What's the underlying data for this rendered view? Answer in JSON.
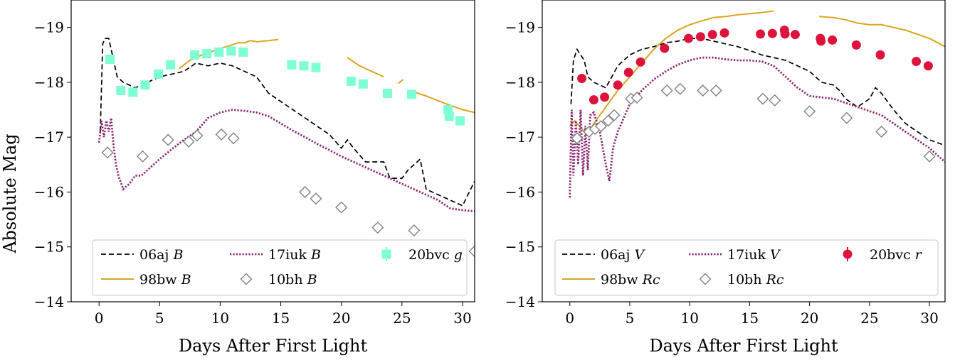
{
  "chart_data": [
    {
      "type": "line",
      "ylabel": "Absolute Mag",
      "xlabel": "Days After First Light",
      "xlim": [
        -2.3,
        31
      ],
      "ylim": [
        -14,
        -19.5
      ],
      "y_inverted": true,
      "xticks": [
        0,
        5,
        10,
        15,
        20,
        25,
        30
      ],
      "yticks": [
        -19,
        -18,
        -17,
        -16,
        -15,
        -14
      ],
      "x_tick_labels": [
        "0",
        "5",
        "10",
        "15",
        "20",
        "25",
        "30"
      ],
      "y_tick_labels": [
        "−19",
        "−18",
        "−17",
        "−16",
        "−15",
        "−14"
      ],
      "legend_position": "lower center",
      "series": [
        {
          "name": "06aj",
          "band": "B",
          "style": "dashed",
          "color": "#000000",
          "x": [
            0.1,
            0.3,
            0.5,
            0.8,
            1.0,
            1.2,
            1.5,
            2.0,
            3.0,
            4.0,
            5.0,
            7.0,
            8.0,
            9.0,
            10.0,
            11.0,
            12.0,
            13.0,
            14.0,
            15.0,
            16.0,
            17.0,
            18.0,
            19.0,
            20.0,
            20.5,
            21.0,
            22.0,
            23.0,
            23.5,
            24.0,
            25.0,
            25.5,
            26.5,
            27.0,
            28.0,
            29.0,
            30.0,
            31.0
          ],
          "y": [
            -17.1,
            -18.7,
            -18.8,
            -18.8,
            -18.6,
            -18.4,
            -18.1,
            -18.0,
            -17.9,
            -18.0,
            -18.1,
            -18.2,
            -18.35,
            -18.3,
            -18.35,
            -18.3,
            -18.2,
            -18.1,
            -17.8,
            -17.65,
            -17.5,
            -17.35,
            -17.2,
            -17.05,
            -16.8,
            -16.95,
            -16.8,
            -16.55,
            -16.55,
            -16.55,
            -16.25,
            -16.25,
            -16.4,
            -16.6,
            -16.05,
            -15.95,
            -15.85,
            -15.75,
            -16.2
          ]
        },
        {
          "name": "98bw",
          "band": "B",
          "style": "solid",
          "color": "#DAA520",
          "segments": [
            {
              "x": [
                6.6,
                7.5,
                8.5,
                9.5,
                10.5,
                11.5,
                12.0,
                12.5,
                13.0,
                14.0,
                14.8
              ],
              "y": [
                -18.25,
                -18.4,
                -18.5,
                -18.58,
                -18.65,
                -18.72,
                -18.72,
                -18.76,
                -18.74,
                -18.76,
                -18.78
              ]
            },
            {
              "x": [
                20.5,
                21.5,
                22.5,
                23.5
              ],
              "y": [
                -18.45,
                -18.3,
                -18.2,
                -18.1
              ]
            },
            {
              "x": [
                24.7,
                25.1
              ],
              "y": [
                -17.98,
                -18.05
              ]
            },
            {
              "x": [
                25.6,
                27.0,
                28.5,
                30.0,
                31.0
              ],
              "y": [
                -17.85,
                -17.75,
                -17.62,
                -17.5,
                -17.45
              ]
            }
          ]
        },
        {
          "name": "17iuk",
          "band": "B",
          "style": "dotted",
          "color": "#8B2872",
          "x": [
            0.0,
            0.2,
            0.4,
            0.6,
            0.8,
            1.0,
            1.2,
            1.4,
            1.6,
            2.0,
            2.5,
            3.0,
            3.5,
            4.0,
            5.0,
            6.0,
            7.0,
            8.0,
            9.0,
            10.0,
            11.0,
            12.0,
            13.0,
            14.0,
            15.0,
            16.0,
            17.0,
            18.0,
            20.0,
            22.0,
            24.0,
            26.0,
            28.0,
            29.0,
            30.0,
            31.0
          ],
          "y": [
            -16.9,
            -17.3,
            -17.0,
            -17.3,
            -17.1,
            -17.35,
            -16.85,
            -16.5,
            -16.3,
            -16.05,
            -16.15,
            -16.3,
            -16.3,
            -16.4,
            -16.6,
            -16.78,
            -16.95,
            -17.1,
            -17.35,
            -17.45,
            -17.5,
            -17.48,
            -17.45,
            -17.38,
            -17.25,
            -17.12,
            -17.0,
            -16.88,
            -16.65,
            -16.45,
            -16.25,
            -16.05,
            -15.85,
            -15.7,
            -15.67,
            -15.65
          ]
        },
        {
          "name": "10bh",
          "band": "B",
          "style": "marker-diamond-open",
          "color": "#808080",
          "x": [
            0.7,
            3.6,
            5.7,
            7.4,
            8.1,
            10.1,
            11.1,
            17.0,
            17.9,
            20.0,
            23.0,
            26.0,
            31.0
          ],
          "y": [
            -16.72,
            -16.65,
            -16.95,
            -16.92,
            -17.03,
            -17.05,
            -16.98,
            -16.0,
            -15.88,
            -15.72,
            -15.35,
            -15.3,
            -14.92
          ]
        },
        {
          "name": "20bvc",
          "band": "g",
          "style": "marker-square",
          "color": "#7FFFD4",
          "x": [
            0.9,
            1.8,
            2.8,
            3.8,
            4.9,
            5.9,
            7.9,
            8.9,
            9.9,
            10.9,
            11.9,
            15.9,
            16.9,
            17.9,
            20.8,
            21.8,
            23.8,
            25.8,
            28.8,
            28.9,
            29.8
          ],
          "y": [
            -18.42,
            -17.85,
            -17.82,
            -17.95,
            -18.15,
            -18.32,
            -18.5,
            -18.52,
            -18.55,
            -18.57,
            -18.55,
            -18.32,
            -18.3,
            -18.27,
            -18.02,
            -17.97,
            -17.8,
            -17.78,
            -17.5,
            -17.38,
            -17.3
          ]
        }
      ],
      "legend_entries": [
        {
          "name": "06aj",
          "band": "B"
        },
        {
          "name": "98bw",
          "band": "B"
        },
        {
          "name": "17iuk",
          "band": "B"
        },
        {
          "name": "10bh",
          "band": "B"
        },
        {
          "name": "20bvc",
          "band": "g"
        }
      ]
    },
    {
      "type": "line",
      "ylabel": "",
      "xlabel": "Days After First Light",
      "xlim": [
        -2.3,
        31.3
      ],
      "ylim": [
        -14,
        -19.5
      ],
      "y_inverted": true,
      "xticks": [
        0,
        5,
        10,
        15,
        20,
        25,
        30
      ],
      "yticks": [
        -19,
        -18,
        -17,
        -16,
        -15,
        -14
      ],
      "x_tick_labels": [
        "0",
        "5",
        "10",
        "15",
        "20",
        "25",
        "30"
      ],
      "y_tick_labels": [
        "−19",
        "−18",
        "−17",
        "−16",
        "−15",
        "−14"
      ],
      "legend_position": "lower center",
      "series": [
        {
          "name": "06aj",
          "band": "V",
          "style": "dashed",
          "color": "#000000",
          "x": [
            0.1,
            0.3,
            0.6,
            0.9,
            1.2,
            1.5,
            2.0,
            3.0,
            3.5,
            4.0,
            4.5,
            5.0,
            6.0,
            7.0,
            8.0,
            9.0,
            10.0,
            11.0,
            12.0,
            13.0,
            14.0,
            15.0,
            16.0,
            17.0,
            18.0,
            19.0,
            20.0,
            21.0,
            22.0,
            22.5,
            23.0,
            24.0,
            25.0,
            25.5,
            26.0,
            27.0,
            28.0,
            29.0,
            30.0,
            31.3
          ],
          "y": [
            -17.6,
            -18.4,
            -18.6,
            -18.5,
            -18.4,
            -18.1,
            -18.0,
            -17.9,
            -18.1,
            -18.3,
            -18.4,
            -18.5,
            -18.6,
            -18.65,
            -18.72,
            -18.75,
            -18.8,
            -18.8,
            -18.75,
            -18.7,
            -18.65,
            -18.58,
            -18.5,
            -18.45,
            -18.4,
            -18.3,
            -18.2,
            -18.0,
            -17.95,
            -17.85,
            -17.7,
            -17.55,
            -17.7,
            -17.9,
            -17.8,
            -17.5,
            -17.25,
            -17.1,
            -16.95,
            -16.85
          ]
        },
        {
          "name": "98bw",
          "band": "Rc",
          "style": "solid",
          "color": "#DAA520",
          "segments": [
            {
              "x": [
                0.0,
                0.4,
                1.0,
                1.5,
                2.0,
                3.0,
                4.0,
                5.0,
                6.0,
                7.0,
                8.0,
                9.0,
                10.0,
                11.0,
                12.0,
                13.0,
                14.0,
                15.0,
                16.0,
                17.0
              ],
              "y": [
                -17.2,
                -17.3,
                -17.15,
                -17.05,
                -17.25,
                -17.55,
                -17.85,
                -18.1,
                -18.35,
                -18.6,
                -18.8,
                -18.95,
                -19.05,
                -19.12,
                -19.18,
                -19.2,
                -19.23,
                -19.25,
                -19.27,
                -19.3
              ]
            },
            {
              "x": [
                20.8,
                22.0,
                23.0,
                24.0,
                25.0,
                26.0,
                28.0,
                30.0,
                31.3
              ],
              "y": [
                -19.2,
                -19.18,
                -19.14,
                -19.08,
                -19.05,
                -19.05,
                -18.95,
                -18.8,
                -18.65
              ]
            }
          ]
        },
        {
          "name": "17iuk",
          "band": "V",
          "style": "dotted",
          "color": "#8B2872",
          "x": [
            0.0,
            0.15,
            0.3,
            0.5,
            0.7,
            0.9,
            1.1,
            1.3,
            1.5,
            1.7,
            2.0,
            2.5,
            3.0,
            3.3,
            3.6,
            4.0,
            4.5,
            5.0,
            6.0,
            7.0,
            8.0,
            9.0,
            10.0,
            11.0,
            12.0,
            13.0,
            14.0,
            15.0,
            16.0,
            17.0,
            18.0,
            19.0,
            20.0,
            22.0,
            24.0,
            26.0,
            28.0,
            30.0,
            31.3
          ],
          "y": [
            -15.9,
            -17.5,
            -16.3,
            -17.3,
            -16.5,
            -17.5,
            -16.3,
            -17.2,
            -16.4,
            -17.4,
            -17.45,
            -17.1,
            -16.5,
            -16.2,
            -16.8,
            -17.1,
            -17.35,
            -17.6,
            -17.85,
            -18.05,
            -18.2,
            -18.32,
            -18.4,
            -18.45,
            -18.45,
            -18.42,
            -18.4,
            -18.4,
            -18.38,
            -18.3,
            -18.1,
            -17.9,
            -17.75,
            -17.7,
            -17.55,
            -17.4,
            -17.1,
            -16.8,
            -16.55
          ]
        },
        {
          "name": "10bh",
          "band": "Rc",
          "style": "marker-diamond-open",
          "color": "#808080",
          "x": [
            0.6,
            1.6,
            2.1,
            2.6,
            3.2,
            3.7,
            5.1,
            5.6,
            8.1,
            9.2,
            11.1,
            12.2,
            16.1,
            17.1,
            20.0,
            23.1,
            26.0,
            30.0
          ],
          "y": [
            -16.98,
            -17.1,
            -17.15,
            -17.2,
            -17.3,
            -17.4,
            -17.7,
            -17.72,
            -17.85,
            -17.88,
            -17.85,
            -17.85,
            -17.7,
            -17.67,
            -17.47,
            -17.35,
            -17.1,
            -16.65
          ]
        },
        {
          "name": "20bvc",
          "band": "r",
          "style": "marker-circle",
          "color": "#DC143C",
          "x": [
            1.0,
            2.0,
            2.9,
            4.0,
            4.9,
            5.9,
            7.9,
            9.9,
            10.9,
            11.9,
            12.9,
            15.9,
            16.9,
            17.9,
            17.95,
            18.8,
            20.9,
            20.95,
            21.9,
            23.9,
            25.9,
            28.9,
            29.9
          ],
          "y": [
            -18.07,
            -17.68,
            -17.73,
            -17.95,
            -18.18,
            -18.37,
            -18.62,
            -18.8,
            -18.83,
            -18.87,
            -18.9,
            -18.88,
            -18.89,
            -18.95,
            -18.88,
            -18.87,
            -18.8,
            -18.75,
            -18.77,
            -18.68,
            -18.5,
            -18.38,
            -18.3
          ]
        }
      ],
      "legend_entries": [
        {
          "name": "06aj",
          "band": "V"
        },
        {
          "name": "98bw",
          "band": "Rc"
        },
        {
          "name": "17iuk",
          "band": "V"
        },
        {
          "name": "10bh",
          "band": "Rc"
        },
        {
          "name": "20bvc",
          "band": "r"
        }
      ]
    }
  ]
}
